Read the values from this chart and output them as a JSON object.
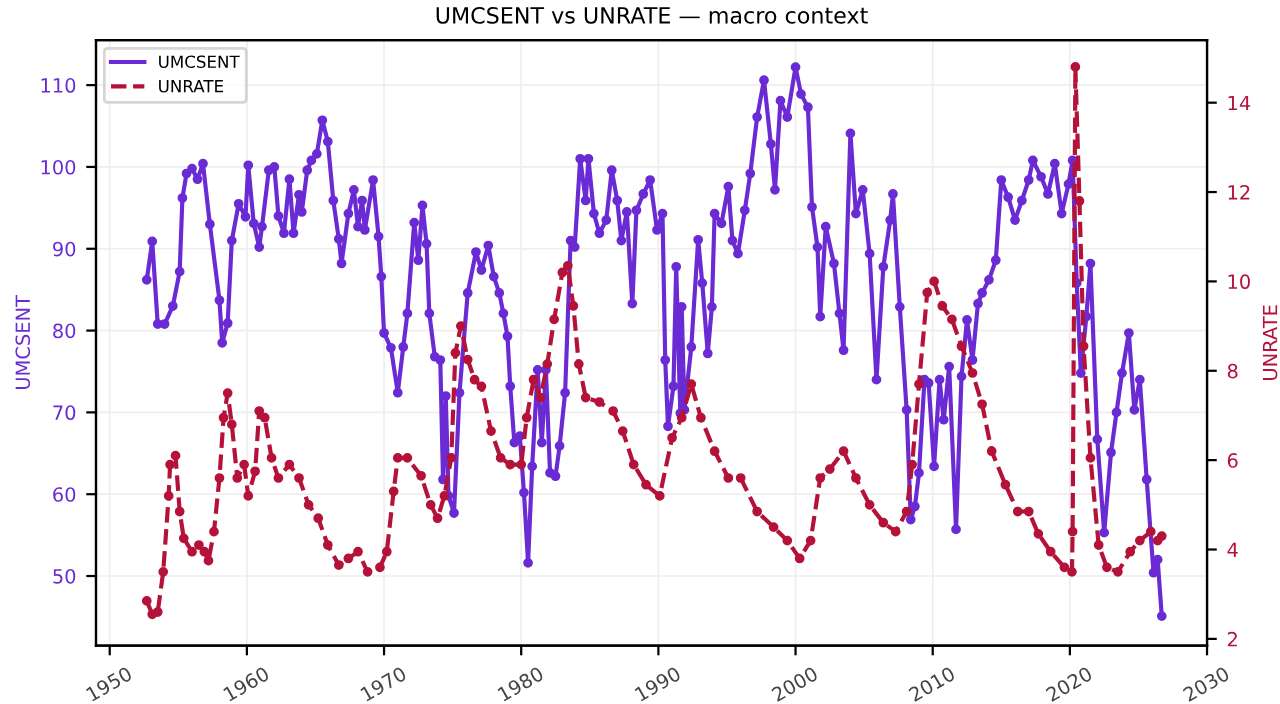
{
  "chart_data": {
    "type": "line",
    "title": "UMCSENT vs UNRATE — macro context",
    "ylabel": "UMCSENT",
    "y2label": "UNRATE",
    "xlim": [
      1949,
      2030
    ],
    "xticks": [
      1950,
      1960,
      1970,
      1980,
      1990,
      2000,
      2010,
      2020,
      2030
    ],
    "ylim": [
      41.5,
      115.5
    ],
    "yticks": [
      50,
      60,
      70,
      80,
      90,
      100,
      110
    ],
    "y2lim": [
      1.85,
      15.4
    ],
    "y2ticks": [
      2,
      4,
      6,
      8,
      10,
      12,
      14
    ],
    "grid": true,
    "legend": "top left",
    "marker": "circle",
    "series": [
      {
        "name": "UMCSENT",
        "color": "#6a2bd4",
        "line_style": "solid",
        "x": [
          1952.7,
          1953.1,
          1953.5,
          1954.0,
          1954.6,
          1955.1,
          1955.3,
          1955.6,
          1956.0,
          1956.4,
          1956.8,
          1957.3,
          1958.0,
          1958.2,
          1958.6,
          1958.9,
          1959.4,
          1959.9,
          1960.1,
          1960.5,
          1960.9,
          1961.1,
          1961.6,
          1962.0,
          1962.3,
          1962.7,
          1963.1,
          1963.4,
          1963.8,
          1964.0,
          1964.4,
          1964.7,
          1965.1,
          1965.5,
          1965.9,
          1966.3,
          1966.7,
          1966.9,
          1967.4,
          1967.8,
          1968.1,
          1968.4,
          1968.6,
          1969.2,
          1969.6,
          1969.8,
          1970.0,
          1970.5,
          1971.0,
          1971.4,
          1971.7,
          1972.2,
          1972.5,
          1972.8,
          1973.1,
          1973.3,
          1973.7,
          1974.1,
          1974.3,
          1974.5,
          1974.7,
          1975.1,
          1975.5,
          1976.1,
          1976.7,
          1977.1,
          1977.6,
          1978.0,
          1978.4,
          1978.7,
          1979.0,
          1979.2,
          1979.5,
          1979.9,
          1980.2,
          1980.5,
          1980.8,
          1981.2,
          1981.5,
          1981.8,
          1982.1,
          1982.5,
          1982.8,
          1983.2,
          1983.6,
          1983.9,
          1984.3,
          1984.7,
          1984.9,
          1985.3,
          1985.7,
          1986.2,
          1986.6,
          1987.0,
          1987.3,
          1987.7,
          1988.1,
          1988.4,
          1988.9,
          1989.4,
          1989.9,
          1990.3,
          1990.5,
          1990.7,
          1991.1,
          1991.3,
          1991.6,
          1991.7,
          1991.9,
          1992.4,
          1992.9,
          1993.2,
          1993.6,
          1993.9,
          1994.1,
          1994.6,
          1995.1,
          1995.4,
          1995.8,
          1996.3,
          1996.7,
          1997.2,
          1997.7,
          1998.2,
          1998.5,
          1998.9,
          1999.4,
          2000.0,
          2000.4,
          2000.9,
          2001.2,
          2001.6,
          2001.8,
          2002.2,
          2002.8,
          2003.2,
          2003.5,
          2004.0,
          2004.4,
          2004.9,
          2005.4,
          2005.9,
          2006.4,
          2006.9,
          2007.1,
          2007.6,
          2008.1,
          2008.4,
          2008.7,
          2009.0,
          2009.4,
          2009.7,
          2010.1,
          2010.5,
          2010.8,
          2011.2,
          2011.7,
          2012.1,
          2012.5,
          2012.9,
          2013.3,
          2013.6,
          2014.1,
          2014.6,
          2015.0,
          2015.5,
          2016.0,
          2016.5,
          2017.0,
          2017.3,
          2017.9,
          2018.4,
          2018.9,
          2019.4,
          2019.9,
          2020.2,
          2020.5,
          2020.8,
          2021.2,
          2021.5,
          2022.0,
          2022.5,
          2023.0,
          2023.4,
          2023.8,
          2024.3,
          2024.7,
          2025.1,
          2025.6,
          2026.1,
          2026.4,
          2026.7
        ],
        "values": [
          86.2,
          90.9,
          80.8,
          80.8,
          83,
          87.2,
          96.2,
          99.2,
          99.8,
          98.5,
          100.4,
          93,
          83.7,
          78.5,
          80.9,
          91,
          95.5,
          93.9,
          100.2,
          93.1,
          90.2,
          92.7,
          99.6,
          100,
          94,
          91.9,
          98.5,
          91.9,
          96.6,
          94.5,
          99.6,
          100.8,
          101.6,
          105.7,
          103.1,
          95.9,
          91.2,
          88.2,
          94.3,
          97.2,
          92.7,
          95.9,
          92.3,
          98.4,
          91.5,
          86.6,
          79.7,
          77.9,
          72.4,
          78,
          82.1,
          93.2,
          88.6,
          95.3,
          90.6,
          82.1,
          76.8,
          76.4,
          61.8,
          72,
          59.8,
          57.7,
          72.4,
          84.6,
          89.6,
          87.4,
          90.4,
          86.6,
          84.6,
          82.1,
          79.3,
          73.2,
          66.3,
          67.1,
          60.2,
          51.6,
          63.4,
          75.2,
          66.3,
          75.2,
          62.6,
          62.2,
          65.9,
          72.4,
          91,
          90.2,
          101,
          95.9,
          101,
          94.3,
          91.9,
          93.5,
          99.6,
          95.9,
          91,
          94.5,
          83.3,
          94.7,
          96.7,
          98.4,
          92.3,
          94.3,
          76.4,
          68.3,
          73.2,
          87.8,
          69.9,
          82.9,
          70.3,
          78,
          91.1,
          85.8,
          77.2,
          82.9,
          94.3,
          93.1,
          97.6,
          91,
          89.4,
          94.7,
          99.2,
          106.1,
          110.6,
          102.8,
          97.2,
          108.1,
          106.1,
          112.2,
          108.9,
          107.3,
          95.1,
          90.2,
          81.7,
          92.7,
          88.2,
          82.1,
          77.6,
          104.1,
          94.3,
          97.2,
          89.4,
          74,
          87.8,
          93.5,
          96.7,
          82.9,
          70.3,
          56.9,
          58.5,
          62.6,
          74,
          73.6,
          63.4,
          74,
          69.1,
          75.6,
          55.7,
          74.4,
          81.3,
          76.4,
          83.3,
          84.6,
          86.2,
          88.6,
          98.4,
          96.3,
          93.5,
          95.9,
          98.4,
          100.8,
          98.8,
          96.7,
          100.4,
          94.3,
          97.9,
          100.8,
          85.8,
          74.8,
          81.7,
          88.2,
          66.7,
          55.3,
          65.1,
          70,
          74.8,
          79.7,
          70.3,
          74,
          61.8,
          50.4,
          52,
          45.1
        ]
      },
      {
        "name": "UNRATE",
        "color": "#b5123a",
        "line_style": "dashed",
        "axis": "y2",
        "x": [
          1952.7,
          1953.1,
          1953.5,
          1953.9,
          1954.3,
          1954.4,
          1954.8,
          1955.1,
          1955.4,
          1956.0,
          1956.5,
          1956.9,
          1957.2,
          1957.6,
          1958.0,
          1958.3,
          1958.6,
          1958.9,
          1959.3,
          1959.8,
          1960.1,
          1960.6,
          1960.9,
          1961.3,
          1961.8,
          1962.3,
          1963.1,
          1963.8,
          1964.5,
          1965.2,
          1965.9,
          1966.7,
          1967.4,
          1968.1,
          1968.8,
          1969.7,
          1970.2,
          1970.7,
          1971.0,
          1971.7,
          1972.7,
          1973.4,
          1973.9,
          1974.4,
          1974.9,
          1975.2,
          1975.6,
          1976.1,
          1976.6,
          1977.1,
          1977.8,
          1978.5,
          1979.2,
          1980.0,
          1980.4,
          1980.9,
          1981.4,
          1981.9,
          1982.4,
          1983.0,
          1983.4,
          1983.8,
          1984.2,
          1984.7,
          1985.7,
          1986.7,
          1987.4,
          1988.2,
          1989.1,
          1990.1,
          1991.0,
          1991.7,
          1992.4,
          1993.1,
          1994.1,
          1995.1,
          1996.0,
          1997.2,
          1998.4,
          1999.4,
          2000.3,
          2001.1,
          2001.8,
          2002.5,
          2003.5,
          2004.4,
          2005.4,
          2006.4,
          2007.3,
          2008.1,
          2008.5,
          2009.0,
          2009.6,
          2010.1,
          2010.7,
          2011.4,
          2012.1,
          2012.9,
          2013.6,
          2014.3,
          2015.3,
          2016.2,
          2017.0,
          2017.7,
          2018.6,
          2019.6,
          2020.15,
          2020.2,
          2020.4,
          2020.7,
          2021.0,
          2021.5,
          2022.1,
          2022.7,
          2023.5,
          2024.4,
          2025.1,
          2025.9,
          2026.4,
          2026.7
        ],
        "values": [
          2.85,
          2.55,
          2.6,
          3.5,
          5.2,
          5.9,
          6.1,
          4.85,
          4.25,
          3.95,
          4.1,
          3.95,
          3.75,
          4.4,
          5.6,
          6.95,
          7.5,
          6.8,
          5.6,
          5.9,
          5.2,
          5.75,
          7.1,
          6.95,
          6.05,
          5.6,
          5.9,
          5.6,
          5.0,
          4.7,
          4.1,
          3.65,
          3.8,
          3.95,
          3.5,
          3.6,
          3.95,
          5.3,
          6.05,
          6.05,
          5.65,
          5.0,
          4.7,
          5.2,
          6.05,
          8.4,
          9.0,
          8.25,
          7.8,
          7.65,
          6.65,
          6.05,
          5.9,
          5.9,
          6.95,
          7.8,
          7.4,
          8.15,
          9.15,
          10.2,
          10.35,
          9.45,
          8.15,
          7.4,
          7.3,
          7.1,
          6.65,
          5.9,
          5.45,
          5.2,
          6.5,
          6.95,
          7.7,
          6.95,
          6.2,
          5.6,
          5.6,
          4.85,
          4.5,
          4.2,
          3.8,
          4.2,
          5.6,
          5.8,
          6.2,
          5.6,
          5.0,
          4.6,
          4.4,
          4.85,
          5.9,
          7.7,
          9.75,
          10.0,
          9.45,
          9.15,
          8.55,
          7.95,
          7.25,
          6.2,
          5.45,
          4.85,
          4.85,
          4.35,
          3.95,
          3.6,
          3.5,
          4.4,
          14.8,
          11.8,
          8.55,
          6.05,
          4.1,
          3.6,
          3.5,
          3.95,
          4.2,
          4.4,
          4.2,
          4.3
        ]
      }
    ]
  }
}
